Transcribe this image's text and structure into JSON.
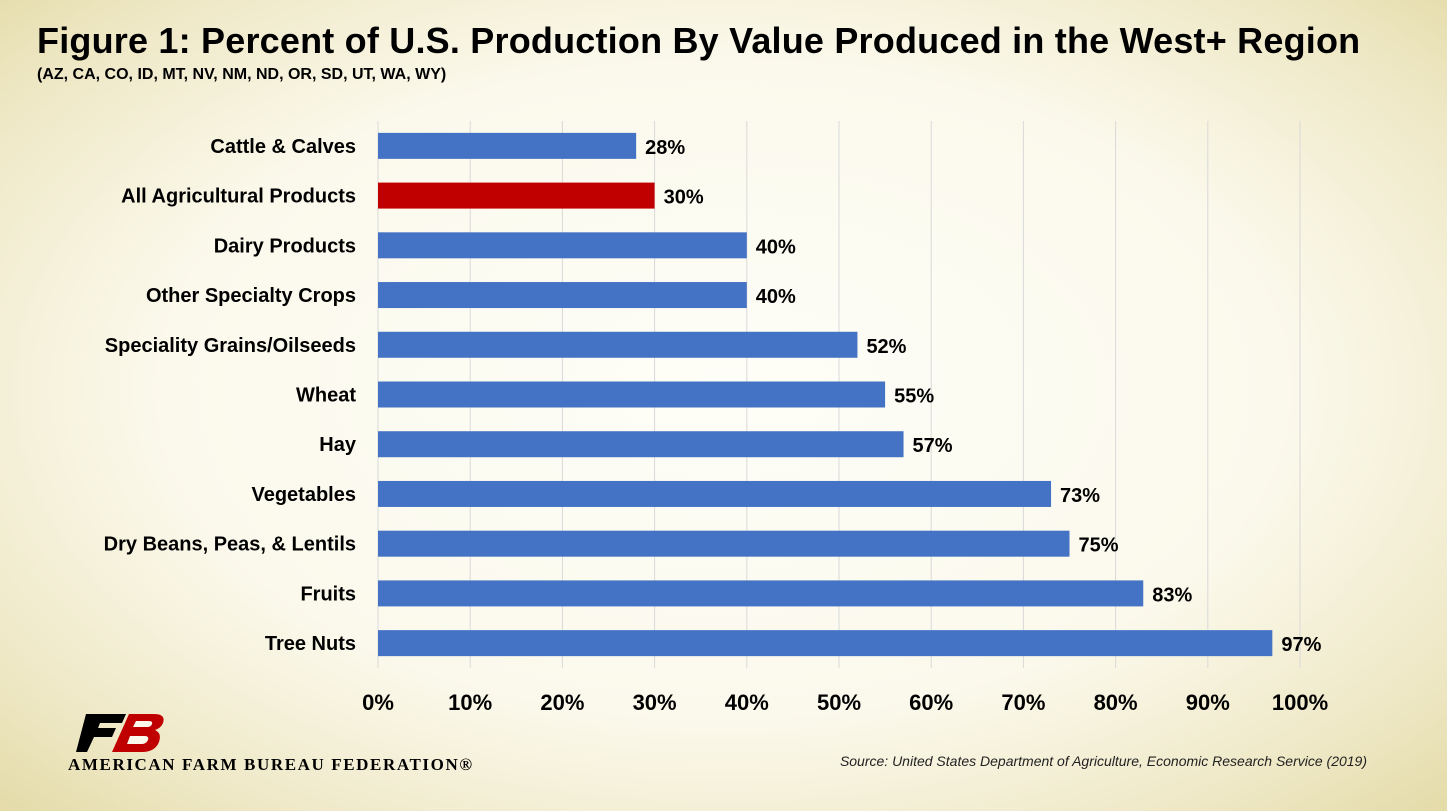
{
  "chart_data": {
    "type": "bar",
    "orientation": "horizontal",
    "title": "Figure 1: Percent of U.S. Production By Value Produced in the West+ Region",
    "subtitle": "(AZ, CA, CO, ID, MT, NV, NM, ND, OR, SD, UT, WA, WY)",
    "categories": [
      "Cattle & Calves",
      "All Agricultural Products",
      "Dairy Products",
      "Other Specialty Crops",
      "Speciality Grains/Oilseeds",
      "Wheat",
      "Hay",
      "Vegetables",
      "Dry Beans, Peas, & Lentils",
      "Fruits",
      "Tree Nuts"
    ],
    "values": [
      28,
      30,
      40,
      40,
      52,
      55,
      57,
      73,
      75,
      83,
      97
    ],
    "data_labels": [
      "28%",
      "30%",
      "40%",
      "40%",
      "52%",
      "55%",
      "57%",
      "73%",
      "75%",
      "83%",
      "97%"
    ],
    "xlim": [
      0,
      100
    ],
    "xticks": [
      0,
      10,
      20,
      30,
      40,
      50,
      60,
      70,
      80,
      90,
      100
    ],
    "xtick_labels": [
      "0%",
      "10%",
      "20%",
      "30%",
      "40%",
      "50%",
      "60%",
      "70%",
      "80%",
      "90%",
      "100%"
    ],
    "grid": "vertical",
    "bar_color": "#4472c4",
    "highlight_color": "#c00000",
    "highlight_category": "All Agricultural Products"
  },
  "footer": {
    "logo_text": "AMERICAN FARM BUREAU FEDERATION®",
    "source": "Source: United States Department of Agriculture, Economic Research Service (2019)"
  }
}
